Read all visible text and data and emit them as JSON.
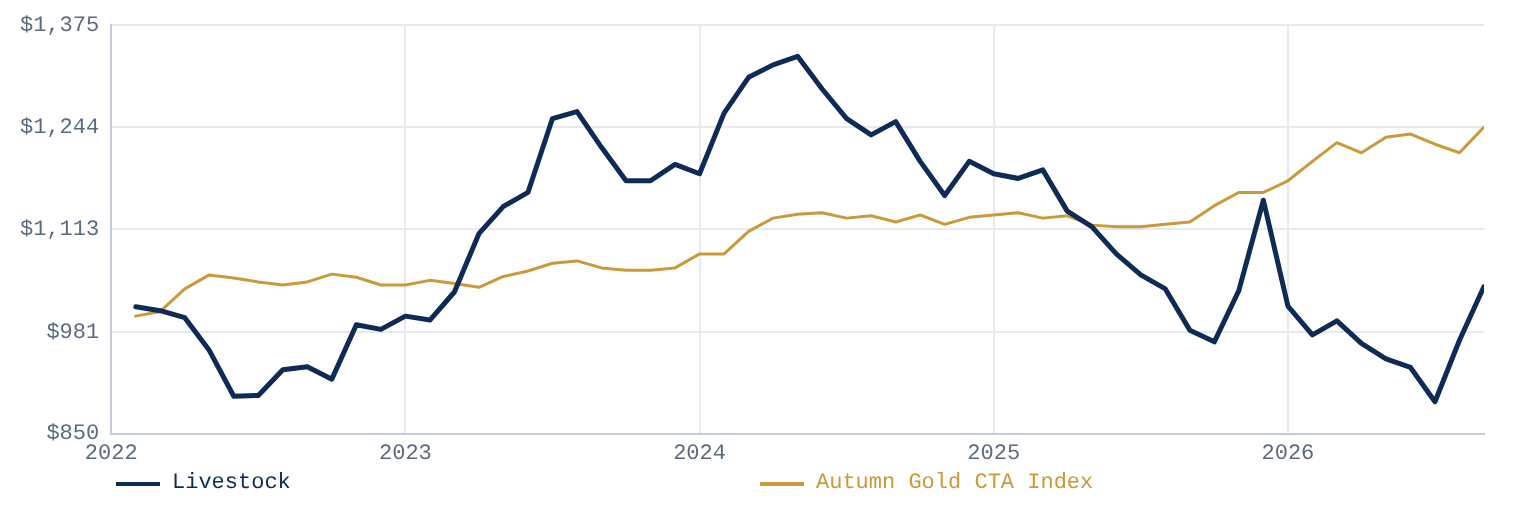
{
  "chart_data": {
    "type": "line",
    "x": [
      "2022-02",
      "2022-03",
      "2022-04",
      "2022-05",
      "2022-06",
      "2022-07",
      "2022-08",
      "2022-09",
      "2022-10",
      "2022-11",
      "2022-12",
      "2023-01",
      "2023-02",
      "2023-03",
      "2023-04",
      "2023-05",
      "2023-06",
      "2023-07",
      "2023-08",
      "2023-09",
      "2023-10",
      "2023-11",
      "2023-12",
      "2024-01",
      "2024-02",
      "2024-03",
      "2024-04",
      "2024-05",
      "2024-06",
      "2024-07",
      "2024-08",
      "2024-09",
      "2024-10",
      "2024-11",
      "2024-12",
      "2025-01",
      "2025-02",
      "2025-03",
      "2025-04",
      "2025-05",
      "2025-06",
      "2025-07",
      "2025-08",
      "2025-09",
      "2025-10",
      "2025-11",
      "2025-12",
      "2026-01",
      "2026-02",
      "2026-03",
      "2026-04",
      "2026-05",
      "2026-06",
      "2026-07",
      "2026-08",
      "2026-09"
    ],
    "series": [
      {
        "name": "Livestock",
        "color": "#0d2b55",
        "values": [
          1013,
          1008,
          999,
          957,
          898,
          899,
          932,
          936,
          920,
          990,
          984,
          1001,
          996,
          1032,
          1107,
          1142,
          1160,
          1255,
          1264,
          1218,
          1175,
          1175,
          1196,
          1184,
          1262,
          1308,
          1324,
          1335,
          1293,
          1255,
          1234,
          1251,
          1200,
          1156,
          1200,
          1184,
          1178,
          1189,
          1136,
          1116,
          1081,
          1054,
          1036,
          983,
          968,
          1034,
          1150,
          1014,
          977,
          995,
          966,
          946,
          935,
          891,
          970,
          1039
        ]
      },
      {
        "name": "Autumn Gold CTA Index",
        "color": "#c9993a",
        "values": [
          1001,
          1007,
          1036,
          1054,
          1050,
          1045,
          1041,
          1045,
          1055,
          1051,
          1041,
          1041,
          1047,
          1043,
          1038,
          1052,
          1059,
          1069,
          1072,
          1063,
          1060,
          1060,
          1063,
          1081,
          1081,
          1110,
          1127,
          1132,
          1134,
          1127,
          1130,
          1122,
          1131,
          1119,
          1128,
          1131,
          1134,
          1127,
          1130,
          1118,
          1116,
          1116,
          1119,
          1122,
          1143,
          1160,
          1160,
          1175,
          1200,
          1224,
          1211,
          1231,
          1235,
          1222,
          1211,
          1244
        ]
      }
    ],
    "xlim": [
      "2022-01",
      "2026-09"
    ],
    "xticks": [
      "2022",
      "2023",
      "2024",
      "2025",
      "2026"
    ],
    "ylim": [
      850,
      1375
    ],
    "yticks": [
      {
        "value": 850,
        "label": "$850"
      },
      {
        "value": 981,
        "label": "$981"
      },
      {
        "value": 1113,
        "label": "$1,113"
      },
      {
        "value": 1244,
        "label": "$1,244"
      },
      {
        "value": 1375,
        "label": "$1,375"
      }
    ],
    "grid": true,
    "legend": "bottom",
    "marker": "none",
    "line_style": "solid"
  }
}
